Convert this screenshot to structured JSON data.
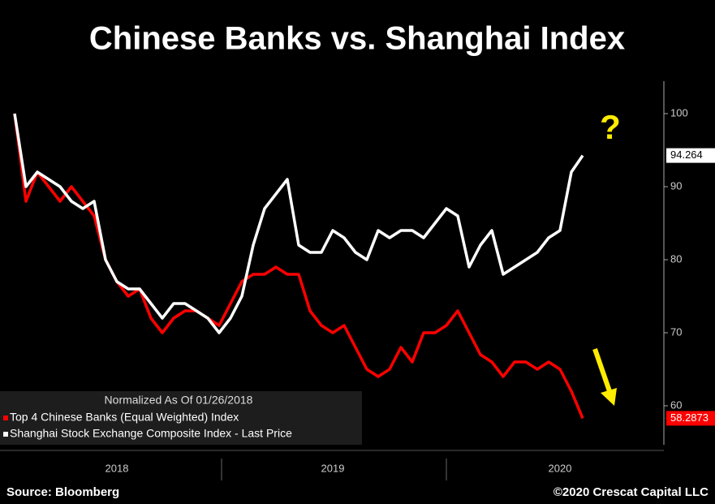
{
  "chart_data": {
    "type": "line",
    "title": "Chinese Banks vs. Shanghai Index",
    "legend_title": "Normalized As Of 01/26/2018",
    "annotation": "?",
    "source": "Source: Bloomberg",
    "credit": "©2020 Crescat Capital LLC",
    "categories": [
      null,
      null,
      null,
      null,
      null,
      null,
      null,
      null,
      null,
      "2018",
      null,
      null,
      null,
      null,
      null,
      null,
      null,
      null,
      null,
      null,
      null,
      null,
      null,
      null,
      null,
      null,
      null,
      null,
      "2019",
      null,
      null,
      null,
      null,
      null,
      null,
      null,
      null,
      null,
      null,
      null,
      null,
      null,
      null,
      null,
      null,
      null,
      null,
      null,
      "2020",
      null,
      null,
      null,
      null,
      null,
      null,
      null,
      null
    ],
    "series": [
      {
        "name": "Top 4 Chinese Banks (Equal Weighted) Index",
        "color": "#ff0000",
        "values": [
          100,
          88,
          92,
          90,
          88,
          90,
          88,
          86,
          80,
          77,
          75,
          76,
          72,
          70,
          72,
          73,
          73,
          72,
          71,
          74,
          77,
          78,
          78,
          79,
          78,
          78,
          73,
          71,
          70,
          71,
          68,
          65,
          64,
          65,
          68,
          66,
          70,
          70,
          71,
          73,
          70,
          67,
          66,
          64,
          66,
          66,
          65,
          66,
          65,
          62,
          58.2873,
          null,
          null,
          null,
          null,
          null,
          null
        ],
        "value_labels": [
          null,
          null,
          null,
          null,
          null,
          null,
          null,
          null,
          null,
          null,
          null,
          null,
          null,
          null,
          null,
          null,
          null,
          null,
          null,
          null,
          null,
          null,
          null,
          null,
          null,
          null,
          null,
          null,
          null,
          null,
          null,
          null,
          null,
          null,
          null,
          null,
          null,
          null,
          null,
          null,
          null,
          null,
          null,
          null,
          null,
          null,
          null,
          null,
          null,
          null,
          "58.2873",
          null,
          null,
          null,
          null,
          null,
          null
        ]
      },
      {
        "name": "Shanghai Stock Exchange Composite Index - Last Price",
        "color": "#ffffff",
        "values": [
          100,
          90,
          92,
          91,
          90,
          88,
          87,
          88,
          80,
          77,
          76,
          76,
          74,
          72,
          74,
          74,
          73,
          72,
          70,
          72,
          75,
          82,
          87,
          89,
          91,
          82,
          81,
          81,
          84,
          83,
          81,
          80,
          84,
          83,
          84,
          84,
          83,
          85,
          87,
          86,
          79,
          82,
          84,
          78,
          79,
          80,
          81,
          83,
          84,
          92,
          94.264,
          null,
          null,
          null,
          null,
          null,
          null
        ],
        "value_labels": [
          null,
          null,
          null,
          null,
          null,
          null,
          null,
          null,
          null,
          null,
          null,
          null,
          null,
          null,
          null,
          null,
          null,
          null,
          null,
          null,
          null,
          null,
          null,
          null,
          null,
          null,
          null,
          null,
          null,
          null,
          null,
          null,
          null,
          null,
          null,
          null,
          null,
          null,
          null,
          null,
          null,
          null,
          null,
          null,
          null,
          null,
          null,
          null,
          null,
          null,
          "94.264",
          null,
          null,
          null,
          null,
          null,
          null
        ]
      }
    ],
    "ylim": [
      55,
      104
    ],
    "yticks": [
      60,
      70,
      80,
      90,
      100
    ]
  }
}
